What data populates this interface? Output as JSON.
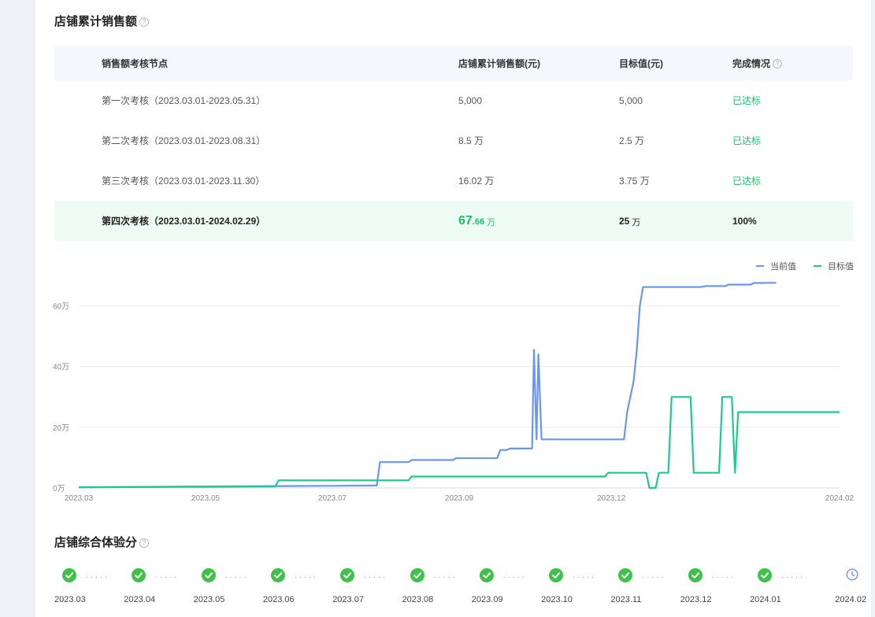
{
  "sales_section": {
    "title": "店铺累计销售额",
    "headers": [
      "销售额考核节点",
      "店铺累计销售额(元)",
      "目标值(元)",
      "完成情况"
    ],
    "rows": [
      {
        "node": "第一次考核（2023.03.01-2023.05.31）",
        "sales": "5,000",
        "target": "5,000",
        "status": "已达标"
      },
      {
        "node": "第二次考核（2023.03.01-2023.08.31）",
        "sales": "8.5 万",
        "target": "2.5 万",
        "status": "已达标"
      },
      {
        "node": "第三次考核（2023.03.01-2023.11.30）",
        "sales": "16.02 万",
        "target": "3.75 万",
        "status": "已达标"
      },
      {
        "node": "第四次考核（2023.03.01-2024.02.29）",
        "sales_int": "67",
        "sales_dec": ".66",
        "sales_unit": "万",
        "target_num": "25",
        "target_unit": "万",
        "status": "100%"
      }
    ]
  },
  "chart_data": {
    "type": "line",
    "y_ticks": [
      "0万",
      "20万",
      "40万",
      "60万"
    ],
    "ylim": [
      0,
      70
    ],
    "x_ticks": [
      "2023.03",
      "2023.05",
      "2023.07",
      "2023.09",
      "2023.12",
      "2024.02"
    ],
    "xlim": [
      0,
      12
    ],
    "legend_position": "top-right",
    "grid": true,
    "series": [
      {
        "name": "当前值",
        "color": "#6b96ee",
        "points": [
          [
            0,
            0.2
          ],
          [
            2,
            0.5
          ],
          [
            4,
            0.7
          ],
          [
            4.7,
            0.8
          ],
          [
            4.75,
            8.5
          ],
          [
            5.2,
            8.5
          ],
          [
            5.25,
            9.2
          ],
          [
            5.9,
            9.2
          ],
          [
            5.95,
            9.8
          ],
          [
            6.6,
            9.8
          ],
          [
            6.65,
            12.5
          ],
          [
            6.75,
            12.5
          ],
          [
            6.8,
            13
          ],
          [
            7.15,
            13
          ],
          [
            7.18,
            45.5
          ],
          [
            7.22,
            16
          ],
          [
            7.25,
            44
          ],
          [
            7.3,
            16
          ],
          [
            8.4,
            16
          ],
          [
            8.6,
            16
          ],
          [
            8.65,
            25
          ],
          [
            8.75,
            35
          ],
          [
            8.8,
            45
          ],
          [
            8.85,
            60
          ],
          [
            8.9,
            66.2
          ],
          [
            9.8,
            66.2
          ],
          [
            9.9,
            66.5
          ],
          [
            10.2,
            66.5
          ],
          [
            10.25,
            67
          ],
          [
            10.6,
            67
          ],
          [
            10.65,
            67.5
          ],
          [
            11,
            67.6
          ]
        ]
      },
      {
        "name": "目标值",
        "color": "#1bcc8a",
        "points": [
          [
            0,
            0.2
          ],
          [
            3.1,
            0.5
          ],
          [
            3.15,
            2.5
          ],
          [
            5.2,
            2.5
          ],
          [
            5.25,
            3.75
          ],
          [
            8.3,
            3.75
          ],
          [
            8.35,
            5
          ],
          [
            8.95,
            5
          ],
          [
            9.0,
            0
          ],
          [
            9.1,
            0
          ],
          [
            9.15,
            5
          ],
          [
            9.3,
            5
          ],
          [
            9.35,
            30
          ],
          [
            9.65,
            30
          ],
          [
            9.7,
            5
          ],
          [
            10.1,
            5
          ],
          [
            10.15,
            30
          ],
          [
            10.3,
            30
          ],
          [
            10.35,
            5
          ],
          [
            10.4,
            25
          ],
          [
            12,
            25
          ]
        ]
      }
    ]
  },
  "score_section": {
    "title": "店铺综合体验分",
    "months": [
      {
        "label": "2023.03",
        "state": "done"
      },
      {
        "label": "2023.04",
        "state": "done"
      },
      {
        "label": "2023.05",
        "state": "done"
      },
      {
        "label": "2023.06",
        "state": "done"
      },
      {
        "label": "2023.07",
        "state": "done"
      },
      {
        "label": "2023.08",
        "state": "done"
      },
      {
        "label": "2023.09",
        "state": "done"
      },
      {
        "label": "2023.10",
        "state": "done"
      },
      {
        "label": "2023.11",
        "state": "done"
      },
      {
        "label": "2023.12",
        "state": "done"
      },
      {
        "label": "2024.01",
        "state": "done"
      },
      {
        "label": "2024.02",
        "state": "pending"
      }
    ],
    "colors": {
      "done": "#3fc14a",
      "pending": "#6b96ee",
      "dots": "#e0674a"
    },
    "dots_text": "·····",
    "icons": {
      "done": "check-circle-icon",
      "pending": "clock-icon"
    }
  }
}
